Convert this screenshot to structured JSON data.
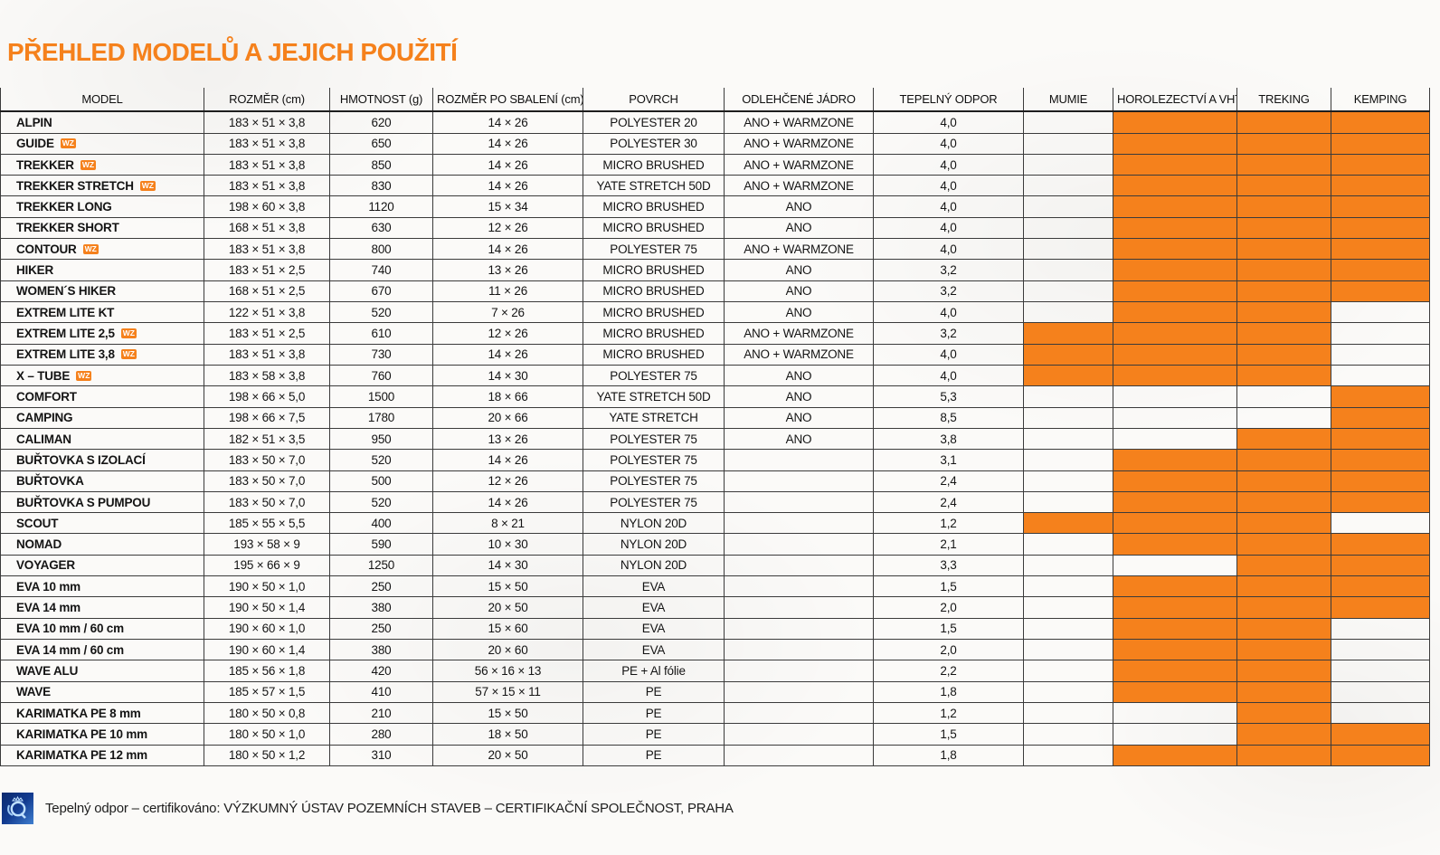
{
  "page": {
    "title": "PŘEHLED MODELŮ A JEJICH POUŽITÍ",
    "accent_color": "#f5811c"
  },
  "table": {
    "wz_badge": "WZ",
    "columns": {
      "model": "MODEL",
      "rozmer": "ROZMĚR (cm)",
      "hmotnost": "HMOTNOST (g)",
      "sbaleni": "ROZMĚR PO SBALENÍ (cm)",
      "povrch": "POVRCH",
      "jadro": "ODLEHČENÉ JÁDRO",
      "odpor": "TEPELNÝ ODPOR",
      "mumie": "MUMIE",
      "horolezectvi": "HOROLEZECTVÍ A VHT",
      "treking": "TREKING",
      "kemping": "KEMPING"
    },
    "rows": [
      {
        "model": "ALPIN",
        "wz": false,
        "rozmer": "183 × 51 × 3,8",
        "hmotnost": "620",
        "sbaleni": "14 × 26",
        "povrch": "POLYESTER 20",
        "jadro": "ANO + WARMZONE",
        "odpor": "4,0",
        "mumie": false,
        "horolezectvi": true,
        "treking": true,
        "kemping": true
      },
      {
        "model": "GUIDE",
        "wz": true,
        "rozmer": "183 × 51 × 3,8",
        "hmotnost": "650",
        "sbaleni": "14 × 26",
        "povrch": "POLYESTER 30",
        "jadro": "ANO + WARMZONE",
        "odpor": "4,0",
        "mumie": false,
        "horolezectvi": true,
        "treking": true,
        "kemping": true
      },
      {
        "model": "TREKKER",
        "wz": true,
        "rozmer": "183 × 51 × 3,8",
        "hmotnost": "850",
        "sbaleni": "14 × 26",
        "povrch": "MICRO BRUSHED",
        "jadro": "ANO + WARMZONE",
        "odpor": "4,0",
        "mumie": false,
        "horolezectvi": true,
        "treking": true,
        "kemping": true
      },
      {
        "model": "TREKKER STRETCH",
        "wz": true,
        "rozmer": "183 × 51 × 3,8",
        "hmotnost": "830",
        "sbaleni": "14 × 26",
        "povrch": "YATE STRETCH 50D",
        "jadro": "ANO + WARMZONE",
        "odpor": "4,0",
        "mumie": false,
        "horolezectvi": true,
        "treking": true,
        "kemping": true
      },
      {
        "model": "TREKKER LONG",
        "wz": false,
        "rozmer": "198 × 60 × 3,8",
        "hmotnost": "1120",
        "sbaleni": "15 × 34",
        "povrch": "MICRO BRUSHED",
        "jadro": "ANO",
        "odpor": "4,0",
        "mumie": false,
        "horolezectvi": true,
        "treking": true,
        "kemping": true
      },
      {
        "model": "TREKKER SHORT",
        "wz": false,
        "rozmer": "168 × 51 × 3,8",
        "hmotnost": "630",
        "sbaleni": "12 × 26",
        "povrch": "MICRO BRUSHED",
        "jadro": "ANO",
        "odpor": "4,0",
        "mumie": false,
        "horolezectvi": true,
        "treking": true,
        "kemping": true
      },
      {
        "model": "CONTOUR",
        "wz": true,
        "rozmer": "183 × 51 × 3,8",
        "hmotnost": "800",
        "sbaleni": "14 × 26",
        "povrch": "POLYESTER 75",
        "jadro": "ANO + WARMZONE",
        "odpor": "4,0",
        "mumie": false,
        "horolezectvi": true,
        "treking": true,
        "kemping": true
      },
      {
        "model": "HIKER",
        "wz": false,
        "rozmer": "183 × 51 × 2,5",
        "hmotnost": "740",
        "sbaleni": "13 × 26",
        "povrch": "MICRO BRUSHED",
        "jadro": "ANO",
        "odpor": "3,2",
        "mumie": false,
        "horolezectvi": true,
        "treking": true,
        "kemping": true
      },
      {
        "model": "WOMEN´S HIKER",
        "wz": false,
        "rozmer": "168 × 51 × 2,5",
        "hmotnost": "670",
        "sbaleni": "11 × 26",
        "povrch": "MICRO BRUSHED",
        "jadro": "ANO",
        "odpor": "3,2",
        "mumie": false,
        "horolezectvi": true,
        "treking": true,
        "kemping": true
      },
      {
        "model": "EXTREM LITE KT",
        "wz": false,
        "rozmer": "122 × 51 × 3,8",
        "hmotnost": "520",
        "sbaleni": "7 × 26",
        "povrch": "MICRO BRUSHED",
        "jadro": "ANO",
        "odpor": "4,0",
        "mumie": false,
        "horolezectvi": true,
        "treking": true,
        "kemping": false
      },
      {
        "model": "EXTREM LITE 2,5",
        "wz": true,
        "rozmer": "183 × 51 × 2,5",
        "hmotnost": "610",
        "sbaleni": "12 × 26",
        "povrch": "MICRO BRUSHED",
        "jadro": "ANO + WARMZONE",
        "odpor": "3,2",
        "mumie": true,
        "horolezectvi": true,
        "treking": true,
        "kemping": false
      },
      {
        "model": "EXTREM LITE 3,8",
        "wz": true,
        "rozmer": "183 × 51 × 3,8",
        "hmotnost": "730",
        "sbaleni": "14 × 26",
        "povrch": "MICRO BRUSHED",
        "jadro": "ANO + WARMZONE",
        "odpor": "4,0",
        "mumie": true,
        "horolezectvi": true,
        "treking": true,
        "kemping": false
      },
      {
        "model": "X – TUBE",
        "wz": true,
        "rozmer": "183 × 58 × 3,8",
        "hmotnost": "760",
        "sbaleni": "14 × 30",
        "povrch": "POLYESTER 75",
        "jadro": "ANO",
        "odpor": "4,0",
        "mumie": true,
        "horolezectvi": true,
        "treking": true,
        "kemping": false
      },
      {
        "model": "COMFORT",
        "wz": false,
        "rozmer": "198 × 66 × 5,0",
        "hmotnost": "1500",
        "sbaleni": "18 × 66",
        "povrch": "YATE STRETCH 50D",
        "jadro": "ANO",
        "odpor": "5,3",
        "mumie": false,
        "horolezectvi": false,
        "treking": false,
        "kemping": true
      },
      {
        "model": "CAMPING",
        "wz": false,
        "rozmer": "198 × 66 × 7,5",
        "hmotnost": "1780",
        "sbaleni": "20 × 66",
        "povrch": "YATE STRETCH",
        "jadro": "ANO",
        "odpor": "8,5",
        "mumie": false,
        "horolezectvi": false,
        "treking": false,
        "kemping": true
      },
      {
        "model": "CALIMAN",
        "wz": false,
        "rozmer": "182 × 51 × 3,5",
        "hmotnost": "950",
        "sbaleni": "13 × 26",
        "povrch": "POLYESTER 75",
        "jadro": "ANO",
        "odpor": "3,8",
        "mumie": false,
        "horolezectvi": false,
        "treking": true,
        "kemping": true
      },
      {
        "model": "BUŘTOVKA S IZOLACÍ",
        "wz": false,
        "rozmer": "183 × 50 × 7,0",
        "hmotnost": "520",
        "sbaleni": "14 × 26",
        "povrch": "POLYESTER 75",
        "jadro": "",
        "odpor": "3,1",
        "mumie": false,
        "horolezectvi": true,
        "treking": true,
        "kemping": true
      },
      {
        "model": "BUŘTOVKA",
        "wz": false,
        "rozmer": "183 × 50 × 7,0",
        "hmotnost": "500",
        "sbaleni": "12 × 26",
        "povrch": "POLYESTER 75",
        "jadro": "",
        "odpor": "2,4",
        "mumie": false,
        "horolezectvi": true,
        "treking": true,
        "kemping": true
      },
      {
        "model": "BUŘTOVKA S PUMPOU",
        "wz": false,
        "rozmer": "183 × 50 × 7,0",
        "hmotnost": "520",
        "sbaleni": "14 × 26",
        "povrch": "POLYESTER 75",
        "jadro": "",
        "odpor": "2,4",
        "mumie": false,
        "horolezectvi": true,
        "treking": true,
        "kemping": true
      },
      {
        "model": "SCOUT",
        "wz": false,
        "rozmer": "185 × 55 × 5,5",
        "hmotnost": "400",
        "sbaleni": "8 × 21",
        "povrch": "NYLON 20D",
        "jadro": "",
        "odpor": "1,2",
        "mumie": true,
        "horolezectvi": true,
        "treking": true,
        "kemping": false
      },
      {
        "model": "NOMAD",
        "wz": false,
        "rozmer": "193 × 58 × 9",
        "hmotnost": "590",
        "sbaleni": "10 × 30",
        "povrch": "NYLON 20D",
        "jadro": "",
        "odpor": "2,1",
        "mumie": false,
        "horolezectvi": true,
        "treking": true,
        "kemping": true
      },
      {
        "model": "VOYAGER",
        "wz": false,
        "rozmer": "195 × 66 × 9",
        "hmotnost": "1250",
        "sbaleni": "14 × 30",
        "povrch": "NYLON 20D",
        "jadro": "",
        "odpor": "3,3",
        "mumie": false,
        "horolezectvi": false,
        "treking": true,
        "kemping": true
      },
      {
        "model": "EVA 10 mm",
        "wz": false,
        "rozmer": "190 × 50 × 1,0",
        "hmotnost": "250",
        "sbaleni": "15 × 50",
        "povrch": "EVA",
        "jadro": "",
        "odpor": "1,5",
        "mumie": false,
        "horolezectvi": true,
        "treking": true,
        "kemping": true
      },
      {
        "model": "EVA 14 mm",
        "wz": false,
        "rozmer": "190 × 50 × 1,4",
        "hmotnost": "380",
        "sbaleni": "20 × 50",
        "povrch": "EVA",
        "jadro": "",
        "odpor": "2,0",
        "mumie": false,
        "horolezectvi": true,
        "treking": true,
        "kemping": true
      },
      {
        "model": "EVA 10 mm / 60 cm",
        "wz": false,
        "rozmer": "190 × 60 × 1,0",
        "hmotnost": "250",
        "sbaleni": "15 × 60",
        "povrch": "EVA",
        "jadro": "",
        "odpor": "1,5",
        "mumie": false,
        "horolezectvi": true,
        "treking": true,
        "kemping": false
      },
      {
        "model": "EVA 14 mm / 60 cm",
        "wz": false,
        "rozmer": "190 × 60 × 1,4",
        "hmotnost": "380",
        "sbaleni": "20 × 60",
        "povrch": "EVA",
        "jadro": "",
        "odpor": "2,0",
        "mumie": false,
        "horolezectvi": true,
        "treking": true,
        "kemping": false
      },
      {
        "model": "WAVE ALU",
        "wz": false,
        "rozmer": "185 × 56 × 1,8",
        "hmotnost": "420",
        "sbaleni": "56 × 16 × 13",
        "povrch": "PE + Al fólie",
        "jadro": "",
        "odpor": "2,2",
        "mumie": false,
        "horolezectvi": true,
        "treking": true,
        "kemping": false
      },
      {
        "model": "WAVE",
        "wz": false,
        "rozmer": "185 × 57 × 1,5",
        "hmotnost": "410",
        "sbaleni": "57 × 15 × 11",
        "povrch": "PE",
        "jadro": "",
        "odpor": "1,8",
        "mumie": false,
        "horolezectvi": true,
        "treking": true,
        "kemping": false
      },
      {
        "model": "KARIMATKA PE 8 mm",
        "wz": false,
        "rozmer": "180 × 50 × 0,8",
        "hmotnost": "210",
        "sbaleni": "15 × 50",
        "povrch": "PE",
        "jadro": "",
        "odpor": "1,2",
        "mumie": false,
        "horolezectvi": false,
        "treking": true,
        "kemping": false
      },
      {
        "model": "KARIMATKA PE 10 mm",
        "wz": false,
        "rozmer": "180 × 50 × 1,0",
        "hmotnost": "280",
        "sbaleni": "18 × 50",
        "povrch": "PE",
        "jadro": "",
        "odpor": "1,5",
        "mumie": false,
        "horolezectvi": false,
        "treking": true,
        "kemping": true
      },
      {
        "model": "KARIMATKA PE 12 mm",
        "wz": false,
        "rozmer": "180 × 50 × 1,2",
        "hmotnost": "310",
        "sbaleni": "20 × 50",
        "povrch": "PE",
        "jadro": "",
        "odpor": "1,8",
        "mumie": false,
        "horolezectvi": true,
        "treking": true,
        "kemping": true
      }
    ]
  },
  "footer": {
    "certification_note": "Tepelný odpor – certifikováno: VÝZKUMNÝ ÚSTAV POZEMNÍCH STAVEB – CERTIFIKAČNÍ SPOLEČNOST, PRAHA"
  }
}
